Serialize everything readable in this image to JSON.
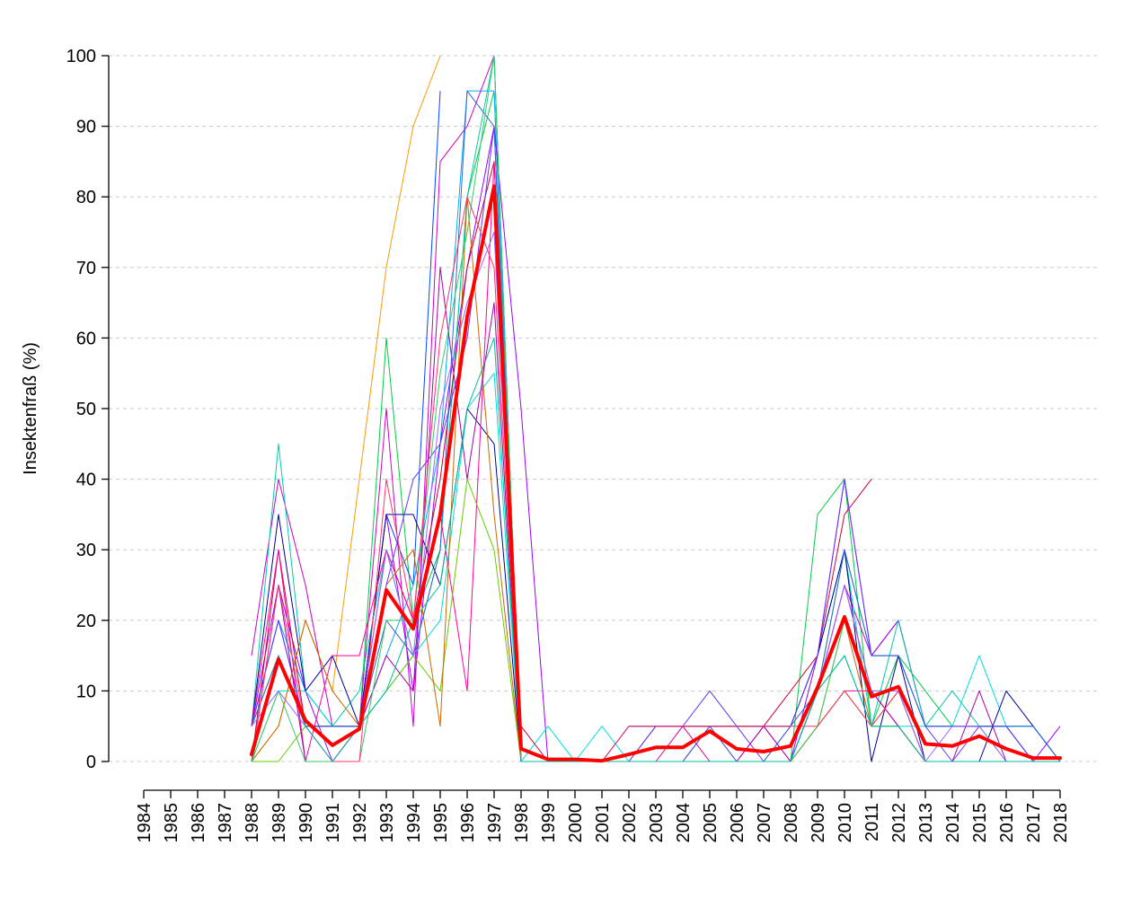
{
  "chart_data": {
    "type": "line",
    "title": "",
    "xlabel": "",
    "ylabel": "Insektenfraß (%)",
    "ylim": [
      0,
      100
    ],
    "yticks": [
      0,
      10,
      20,
      30,
      40,
      50,
      60,
      70,
      80,
      90,
      100
    ],
    "grid": true,
    "x": [
      1984,
      1985,
      1986,
      1987,
      1988,
      1989,
      1990,
      1991,
      1992,
      1993,
      1994,
      1995,
      1996,
      1997,
      1998,
      1999,
      2000,
      2001,
      2002,
      2003,
      2004,
      2005,
      2006,
      2007,
      2008,
      2009,
      2010,
      2011,
      2012,
      2013,
      2014,
      2015,
      2016,
      2017,
      2018
    ],
    "x_tick_labels": [
      "1984",
      "1985",
      "1986",
      "1987",
      "1988",
      "1989",
      "1990",
      "1991",
      "1992",
      "1993",
      "1994",
      "1995",
      "1996",
      "1997",
      "1998",
      "1999",
      "2000",
      "2001",
      "2002",
      "2003",
      "2004",
      "2005",
      "2006",
      "2007",
      "2008",
      "2009",
      "2010",
      "2011",
      "2012",
      "2013",
      "2014",
      "2015",
      "2016",
      "2017",
      "2018"
    ],
    "mean_series": {
      "color": "#ff0000",
      "values": [
        null,
        null,
        null,
        null,
        1,
        14.5,
        5.8,
        2.3,
        4.6,
        24.3,
        18.8,
        35,
        63,
        81.5,
        1.8,
        0.3,
        0.3,
        0.1,
        1,
        2,
        2,
        4.3,
        1.8,
        1.4,
        2.2,
        10.5,
        20.5,
        9.2,
        10.6,
        2.5,
        2.2,
        3.6,
        1.8,
        0.5,
        0.5
      ]
    },
    "series": [
      {
        "color": "#ff9900",
        "values": [
          null,
          null,
          null,
          null,
          0,
          5,
          20,
          10,
          40,
          70,
          90,
          100,
          null,
          null,
          null,
          null,
          null,
          null,
          null,
          null,
          null,
          null,
          null,
          null,
          null,
          null,
          null,
          null,
          null,
          null,
          null,
          null,
          null,
          null,
          null
        ]
      },
      {
        "color": "#00cc44",
        "values": [
          null,
          null,
          null,
          null,
          5,
          15,
          5,
          5,
          5,
          60,
          20,
          30,
          80,
          95,
          0,
          0,
          0,
          0,
          0,
          0,
          0,
          0,
          0,
          0,
          0,
          35,
          40,
          5,
          15,
          10,
          5,
          5,
          0,
          0,
          0
        ]
      },
      {
        "color": "#0044ff",
        "values": [
          null,
          null,
          null,
          null,
          5,
          20,
          5,
          5,
          5,
          35,
          25,
          95,
          null,
          null,
          null,
          null,
          null,
          null,
          null,
          null,
          null,
          null,
          null,
          null,
          null,
          null,
          null,
          null,
          null,
          null,
          null,
          null,
          null,
          null,
          null
        ]
      },
      {
        "color": "#00aaff",
        "values": [
          null,
          null,
          null,
          null,
          5,
          20,
          10,
          5,
          5,
          15,
          25,
          45,
          95,
          95,
          0,
          0,
          0,
          0,
          5,
          5,
          5,
          5,
          5,
          5,
          5,
          15,
          30,
          15,
          15,
          5,
          5,
          5,
          5,
          5,
          0
        ]
      },
      {
        "color": "#cc00cc",
        "values": [
          null,
          null,
          null,
          null,
          15,
          40,
          25,
          5,
          5,
          50,
          5,
          85,
          90,
          100,
          0,
          0,
          0,
          0,
          0,
          0,
          0,
          0,
          0,
          0,
          0,
          10,
          25,
          15,
          20,
          5,
          5,
          5,
          5,
          0,
          0
        ]
      },
      {
        "color": "#9900ff",
        "values": [
          null,
          null,
          null,
          null,
          5,
          25,
          10,
          0,
          5,
          35,
          10,
          45,
          70,
          90,
          50,
          0,
          0,
          0,
          0,
          0,
          0,
          5,
          0,
          0,
          0,
          15,
          40,
          15,
          20,
          5,
          5,
          5,
          5,
          0,
          5
        ]
      },
      {
        "color": "#00ccaa",
        "values": [
          null,
          null,
          null,
          null,
          5,
          45,
          10,
          5,
          10,
          30,
          15,
          30,
          80,
          100,
          0,
          0,
          0,
          0,
          0,
          0,
          0,
          0,
          0,
          0,
          0,
          10,
          30,
          5,
          20,
          5,
          10,
          5,
          5,
          0,
          0
        ]
      },
      {
        "color": "#00dddd",
        "values": [
          null,
          null,
          null,
          null,
          0,
          10,
          10,
          5,
          5,
          10,
          15,
          20,
          50,
          55,
          0,
          5,
          0,
          5,
          0,
          0,
          5,
          0,
          0,
          0,
          0,
          10,
          15,
          5,
          5,
          5,
          5,
          15,
          5,
          5,
          0
        ]
      },
      {
        "color": "#cc0033",
        "values": [
          null,
          null,
          null,
          null,
          0,
          30,
          5,
          5,
          5,
          30,
          20,
          40,
          70,
          85,
          5,
          0,
          0,
          0,
          0,
          5,
          5,
          5,
          5,
          5,
          10,
          15,
          35,
          40,
          null,
          null,
          null,
          null,
          null,
          null,
          null
        ]
      },
      {
        "color": "#000099",
        "values": [
          null,
          null,
          null,
          null,
          5,
          35,
          10,
          15,
          5,
          35,
          35,
          25,
          50,
          45,
          0,
          0,
          0,
          0,
          5,
          5,
          5,
          5,
          5,
          5,
          5,
          15,
          30,
          0,
          15,
          0,
          0,
          0,
          10,
          5,
          0
        ]
      },
      {
        "color": "#ff0099",
        "values": [
          null,
          null,
          null,
          null,
          5,
          30,
          0,
          15,
          15,
          30,
          20,
          35,
          10,
          85,
          0,
          0,
          0,
          0,
          0,
          0,
          5,
          0,
          0,
          5,
          0,
          5,
          10,
          10,
          5,
          0,
          0,
          0,
          0,
          0,
          0
        ]
      },
      {
        "color": "#66cc00",
        "values": [
          null,
          null,
          null,
          null,
          0,
          0,
          5,
          5,
          5,
          10,
          15,
          10,
          40,
          30,
          0,
          0,
          0,
          0,
          0,
          0,
          0,
          0,
          0,
          0,
          0,
          5,
          10,
          5,
          5,
          0,
          0,
          0,
          0,
          0,
          0
        ]
      },
      {
        "color": "#cc6600",
        "values": [
          null,
          null,
          null,
          null,
          0,
          5,
          20,
          10,
          5,
          25,
          30,
          5,
          80,
          35,
          0,
          0,
          0,
          0,
          0,
          0,
          0,
          0,
          0,
          0,
          0,
          5,
          20,
          5,
          10,
          0,
          0,
          0,
          0,
          0,
          0
        ]
      },
      {
        "color": "#6633ff",
        "values": [
          null,
          null,
          null,
          null,
          5,
          20,
          5,
          5,
          5,
          25,
          40,
          45,
          60,
          90,
          0,
          0,
          0,
          0,
          0,
          5,
          5,
          10,
          5,
          0,
          5,
          15,
          40,
          15,
          15,
          5,
          0,
          5,
          5,
          0,
          0
        ]
      },
      {
        "color": "#aa00aa",
        "values": [
          null,
          null,
          null,
          null,
          0,
          25,
          0,
          0,
          5,
          15,
          10,
          70,
          40,
          65,
          0,
          0,
          0,
          0,
          0,
          0,
          0,
          0,
          0,
          5,
          0,
          10,
          25,
          10,
          5,
          0,
          0,
          10,
          0,
          0,
          0
        ]
      },
      {
        "color": "#3366cc",
        "values": [
          null,
          null,
          null,
          null,
          5,
          15,
          5,
          5,
          5,
          20,
          15,
          30,
          95,
          90,
          0,
          0,
          0,
          0,
          0,
          0,
          0,
          5,
          0,
          0,
          5,
          10,
          30,
          15,
          15,
          5,
          5,
          5,
          5,
          5,
          0
        ]
      },
      {
        "color": "#33cc66",
        "values": [
          null,
          null,
          null,
          null,
          0,
          10,
          0,
          0,
          0,
          20,
          20,
          55,
          75,
          100,
          0,
          0,
          0,
          0,
          0,
          0,
          0,
          0,
          0,
          0,
          0,
          5,
          20,
          10,
          10,
          0,
          0,
          0,
          0,
          0,
          0
        ]
      },
      {
        "color": "#ff3366",
        "values": [
          null,
          null,
          null,
          null,
          0,
          25,
          5,
          0,
          0,
          40,
          20,
          60,
          80,
          70,
          0,
          0,
          0,
          0,
          5,
          5,
          5,
          5,
          5,
          5,
          5,
          5,
          10,
          5,
          10,
          0,
          0,
          0,
          0,
          0,
          0
        ]
      },
      {
        "color": "#9966ff",
        "values": [
          null,
          null,
          null,
          null,
          5,
          10,
          5,
          0,
          5,
          30,
          15,
          50,
          65,
          75,
          0,
          0,
          0,
          0,
          0,
          0,
          0,
          0,
          0,
          0,
          0,
          10,
          25,
          10,
          10,
          0,
          5,
          5,
          0,
          0,
          0
        ]
      },
      {
        "color": "#00bb99",
        "values": [
          null,
          null,
          null,
          null,
          0,
          15,
          5,
          0,
          5,
          10,
          20,
          25,
          50,
          60,
          0,
          0,
          0,
          0,
          0,
          0,
          0,
          0,
          0,
          0,
          0,
          10,
          15,
          5,
          5,
          0,
          0,
          0,
          0,
          0,
          0
        ]
      }
    ]
  }
}
